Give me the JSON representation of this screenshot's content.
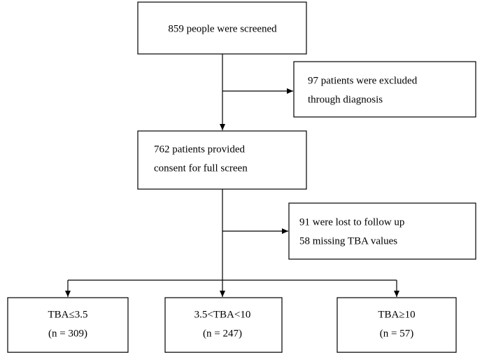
{
  "nodes": [
    {
      "lines": [
        "859 people were screened"
      ]
    },
    {
      "lines": [
        "97 patients were excluded",
        "through diagnosis"
      ]
    },
    {
      "lines": [
        "762 patients provided",
        "consent for full screen"
      ]
    },
    {
      "lines": [
        "91 were lost to follow up",
        "58 missing TBA values"
      ]
    },
    {
      "lines": [
        "TBA≤3.5",
        "(n = 309)"
      ]
    },
    {
      "lines": [
        "3.5<TBA<10",
        "(n = 247)"
      ]
    },
    {
      "lines": [
        "TBA≥10",
        "(n = 57)"
      ]
    }
  ]
}
